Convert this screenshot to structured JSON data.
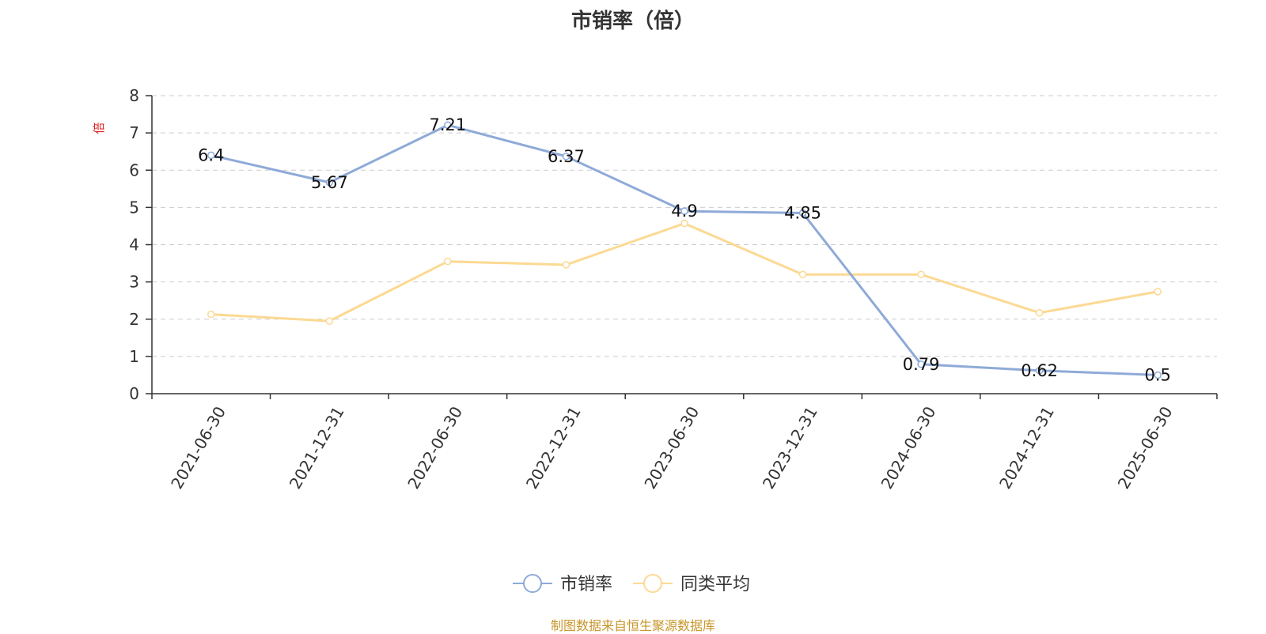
{
  "title": "市销率（倍）",
  "source": "制图数据来自恒生聚源数据库",
  "colors": {
    "series_0": "#8eaad8",
    "series_1": "#fcd993",
    "axis": "#333333",
    "grid": "#cccccc",
    "unit": "#e02020",
    "source": "#c8962a"
  },
  "chart_data": {
    "type": "line",
    "title": "市销率（倍）",
    "ylabel": "倍",
    "xlabel": "",
    "categories": [
      "2021-06-30",
      "2021-12-31",
      "2022-06-30",
      "2022-12-31",
      "2023-06-30",
      "2023-12-31",
      "2024-06-30",
      "2024-12-31",
      "2025-06-30"
    ],
    "ylim": [
      0,
      8
    ],
    "yticks": [
      0,
      1,
      2,
      3,
      4,
      5,
      6,
      7,
      8
    ],
    "grid": true,
    "legend_position": "bottom-center",
    "series": [
      {
        "name": "市销率",
        "values": [
          6.4,
          5.67,
          7.21,
          6.37,
          4.9,
          4.85,
          0.79,
          0.62,
          0.5
        ],
        "data_labels": [
          "6.4",
          "5.67",
          "7.21",
          "6.37",
          "4.9",
          "4.85",
          "0.79",
          "0.62",
          "0.5"
        ]
      },
      {
        "name": "同类平均",
        "values": [
          2.13,
          1.95,
          3.55,
          3.46,
          4.57,
          3.2,
          3.2,
          2.17,
          2.74
        ]
      }
    ]
  }
}
